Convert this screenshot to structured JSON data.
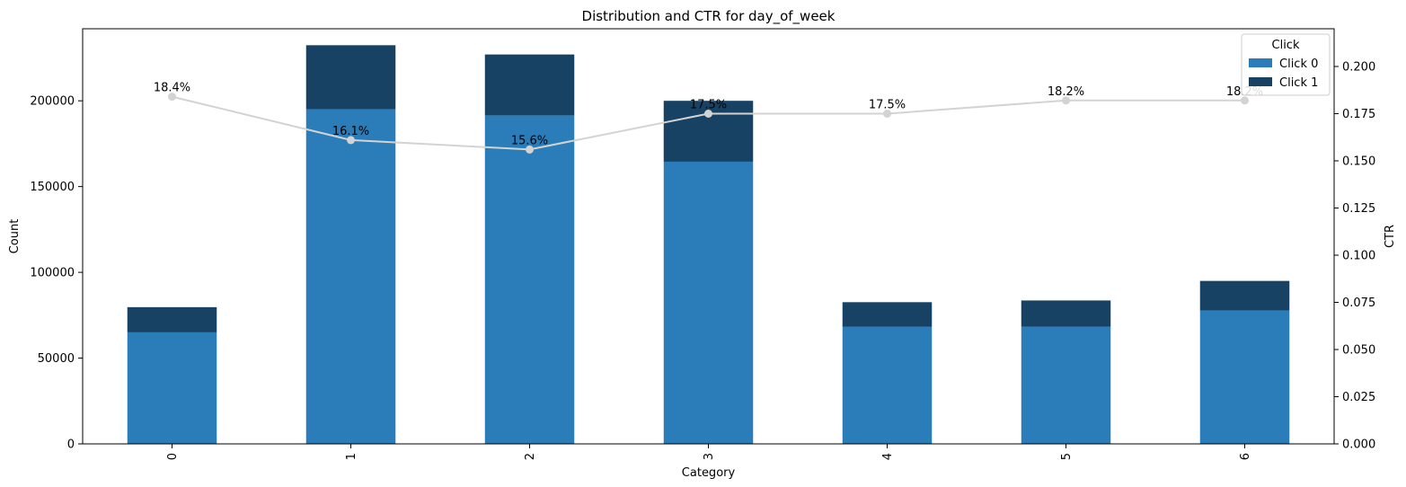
{
  "chart_data": {
    "type": "bar",
    "stacked": true,
    "title": "Distribution and CTR for day_of_week",
    "xlabel": "Category",
    "ylabel": "Count",
    "y2label": "CTR",
    "categories": [
      "0",
      "1",
      "2",
      "3",
      "4",
      "5",
      "6"
    ],
    "series": [
      {
        "name": "Click 0",
        "color": "#2a7db8",
        "values": [
          65000,
          195000,
          191500,
          164500,
          68200,
          68300,
          77700
        ]
      },
      {
        "name": "Click 1",
        "color": "#174263",
        "values": [
          14700,
          37400,
          35500,
          35500,
          14400,
          15300,
          17300
        ]
      }
    ],
    "ctr": {
      "color": "#d3d3d3",
      "values": [
        0.184,
        0.161,
        0.156,
        0.175,
        0.175,
        0.182,
        0.182
      ],
      "labels": [
        "18.4%",
        "16.1%",
        "15.6%",
        "17.5%",
        "17.5%",
        "18.2%",
        "18.2%"
      ]
    },
    "ylim": [
      0,
      242000
    ],
    "yticks": [
      0,
      50000,
      100000,
      150000,
      200000
    ],
    "y2lim": [
      0,
      0.22
    ],
    "y2ticks": [
      "0.000",
      "0.025",
      "0.050",
      "0.075",
      "0.100",
      "0.125",
      "0.150",
      "0.175",
      "0.200"
    ],
    "legend": {
      "title": "Click",
      "position": "top-right"
    }
  }
}
